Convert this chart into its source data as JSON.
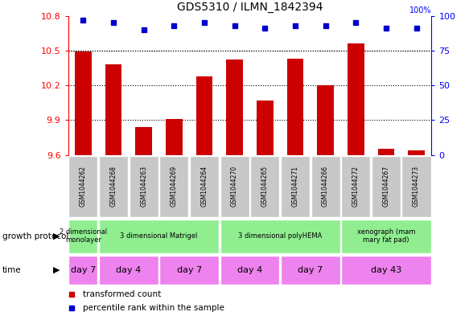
{
  "title": "GDS5310 / ILMN_1842394",
  "samples": [
    "GSM1044262",
    "GSM1044268",
    "GSM1044263",
    "GSM1044269",
    "GSM1044264",
    "GSM1044270",
    "GSM1044265",
    "GSM1044271",
    "GSM1044266",
    "GSM1044272",
    "GSM1044267",
    "GSM1044273"
  ],
  "transformed_counts": [
    10.49,
    10.38,
    9.84,
    9.91,
    10.28,
    10.42,
    10.07,
    10.43,
    10.2,
    10.56,
    9.65,
    9.64
  ],
  "percentile_ranks": [
    97,
    95,
    90,
    93,
    95,
    93,
    91,
    93,
    93,
    95,
    91,
    91
  ],
  "ylim_left": [
    9.6,
    10.8
  ],
  "ylim_right": [
    0,
    100
  ],
  "yticks_left": [
    9.6,
    9.9,
    10.2,
    10.5,
    10.8
  ],
  "yticks_right": [
    0,
    25,
    50,
    75,
    100
  ],
  "bar_color": "#cc0000",
  "dot_color": "#0000cc",
  "growth_protocol_groups": [
    {
      "label": "2 dimensional\nmonolayer",
      "start": 0,
      "end": 1,
      "color": "#90ee90"
    },
    {
      "label": "3 dimensional Matrigel",
      "start": 1,
      "end": 5,
      "color": "#90ee90"
    },
    {
      "label": "3 dimensional polyHEMA",
      "start": 5,
      "end": 9,
      "color": "#90ee90"
    },
    {
      "label": "xenograph (mam\nmary fat pad)",
      "start": 9,
      "end": 12,
      "color": "#90ee90"
    }
  ],
  "time_groups": [
    {
      "label": "day 7",
      "start": 0,
      "end": 1,
      "color": "#ee82ee"
    },
    {
      "label": "day 4",
      "start": 1,
      "end": 3,
      "color": "#ee82ee"
    },
    {
      "label": "day 7",
      "start": 3,
      "end": 5,
      "color": "#ee82ee"
    },
    {
      "label": "day 4",
      "start": 5,
      "end": 7,
      "color": "#ee82ee"
    },
    {
      "label": "day 7",
      "start": 7,
      "end": 9,
      "color": "#ee82ee"
    },
    {
      "label": "day 43",
      "start": 9,
      "end": 12,
      "color": "#ee82ee"
    }
  ],
  "xlabel_growth": "growth protocol",
  "xlabel_time": "time",
  "legend_items": [
    {
      "label": "transformed count",
      "color": "#cc0000"
    },
    {
      "label": "percentile rank within the sample",
      "color": "#0000cc"
    }
  ],
  "sample_bg_color": "#c8c8c8",
  "grid_color": "#000000",
  "right_axis_label": "100%"
}
